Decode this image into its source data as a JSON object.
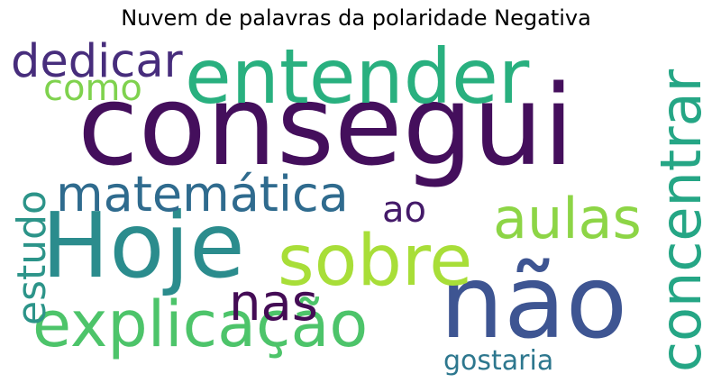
{
  "title": "Nuvem de palavras da polaridade Negativa",
  "words": [
    {
      "text": "consegui",
      "color": "#440f5c"
    },
    {
      "text": "não",
      "color": "#3e5592"
    },
    {
      "text": "Hoje",
      "color": "#2b8c8d"
    },
    {
      "text": "entender",
      "color": "#29b07f"
    },
    {
      "text": "explicação",
      "color": "#4dc46a"
    },
    {
      "text": "sobre",
      "color": "#a8de38"
    },
    {
      "text": "concentrar",
      "color": "#25a685"
    },
    {
      "text": "matemática",
      "color": "#2f6b8e"
    },
    {
      "text": "aulas",
      "color": "#8dd546"
    },
    {
      "text": "dedicar",
      "color": "#472d7c"
    },
    {
      "text": "nas",
      "color": "#440c55"
    },
    {
      "text": "estudo",
      "color": "#2c9489"
    },
    {
      "text": "como",
      "color": "#7fd24e"
    },
    {
      "text": "ao",
      "color": "#441a69"
    },
    {
      "text": "gostaria",
      "color": "#2d778e"
    }
  ]
}
